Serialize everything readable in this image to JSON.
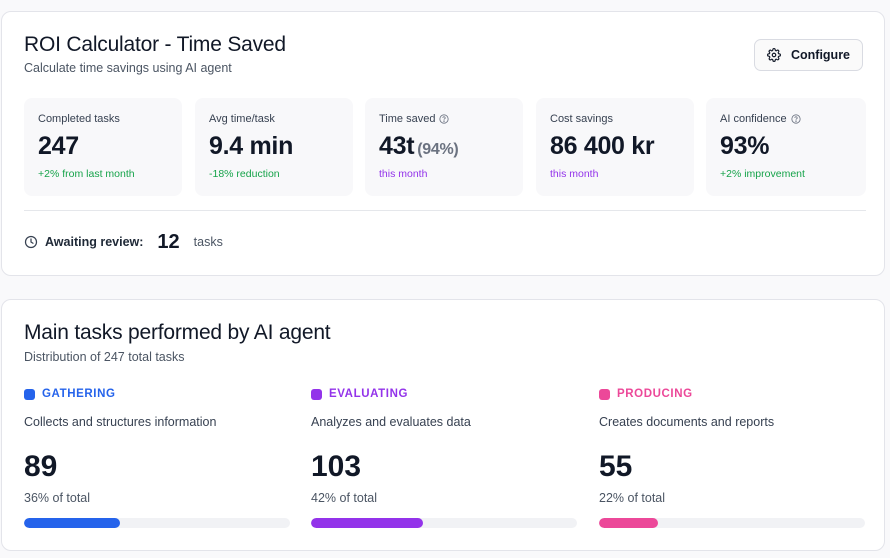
{
  "roi": {
    "title": "ROI Calculator - Time Saved",
    "subtitle": "Calculate time savings using AI agent",
    "configure_label": "Configure",
    "stats": [
      {
        "label": "Completed tasks",
        "value": "247",
        "suffix": "",
        "note": "+2% from last month",
        "note_color": "#16a34a",
        "info": false
      },
      {
        "label": "Avg time/task",
        "value": "9.4 min",
        "suffix": "",
        "note": "-18% reduction",
        "note_color": "#16a34a",
        "info": false
      },
      {
        "label": "Time saved",
        "value": "43t",
        "suffix": "(94%)",
        "note": "this month",
        "note_color": "#9333ea",
        "info": true
      },
      {
        "label": "Cost savings",
        "value": "86 400 kr",
        "suffix": "",
        "note": "this month",
        "note_color": "#9333ea",
        "info": false
      },
      {
        "label": "AI confidence",
        "value": "93%",
        "suffix": "",
        "note": "+2% improvement",
        "note_color": "#16a34a",
        "info": true
      }
    ],
    "awaiting": {
      "label": "Awaiting review:",
      "count": "12",
      "unit": "tasks"
    }
  },
  "tasks": {
    "title": "Main tasks performed by AI agent",
    "subtitle": "Distribution of 247 total tasks",
    "categories": [
      {
        "name": "GATHERING",
        "description": "Collects and structures information",
        "count": "89",
        "share_label": "36% of total",
        "share": 0.36,
        "color": "#2563eb"
      },
      {
        "name": "EVALUATING",
        "description": "Analyzes and evaluates data",
        "count": "103",
        "share_label": "42% of total",
        "share": 0.42,
        "color": "#9333ea"
      },
      {
        "name": "PRODUCING",
        "description": "Creates documents and reports",
        "count": "55",
        "share_label": "22% of total",
        "share": 0.22,
        "color": "#ec4899"
      }
    ]
  },
  "icons": {
    "configure": "gear-icon",
    "awaiting": "clock-icon",
    "info": "info-circle-icon"
  }
}
